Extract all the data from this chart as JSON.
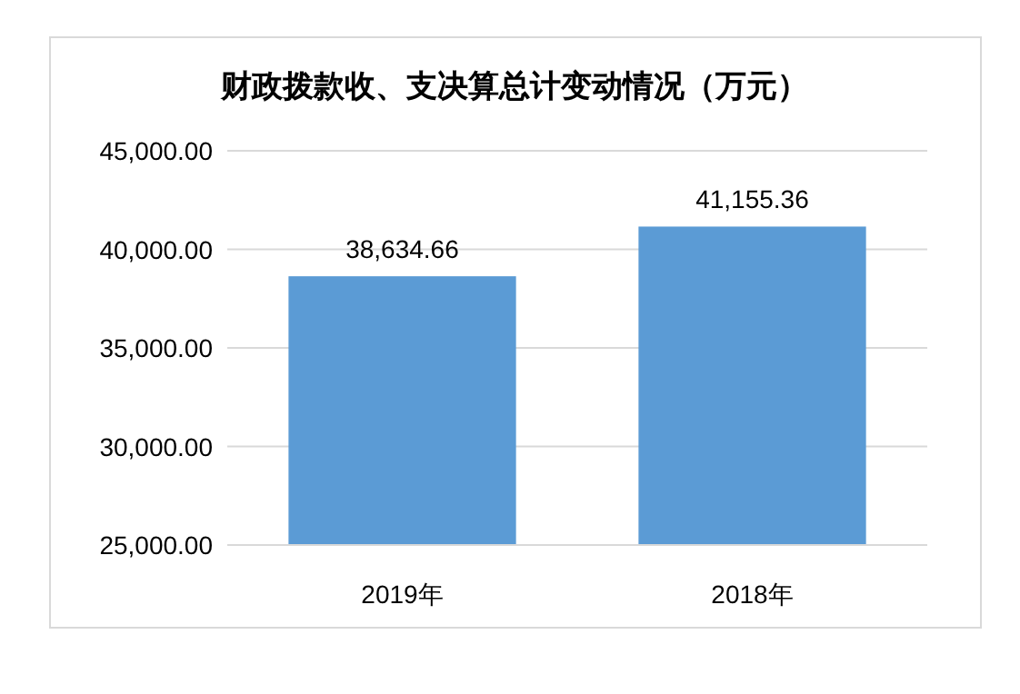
{
  "chart_data": {
    "type": "bar",
    "title": "财政拨款收、支决算总计变动情况（万元）",
    "categories": [
      "2019年",
      "2018年"
    ],
    "values": [
      38634.66,
      41155.36
    ],
    "color": "#5b9bd5",
    "value_labels": [
      "38,634.66",
      "41,155.36"
    ],
    "ylim": [
      25000,
      45000
    ],
    "yticks": [
      {
        "value": 25000,
        "label": "25,000.00"
      },
      {
        "value": 30000,
        "label": "30,000.00"
      },
      {
        "value": 35000,
        "label": "35,000.00"
      },
      {
        "value": 40000,
        "label": "40,000.00"
      },
      {
        "value": 45000,
        "label": "45,000.00"
      }
    ],
    "grid": "y"
  }
}
